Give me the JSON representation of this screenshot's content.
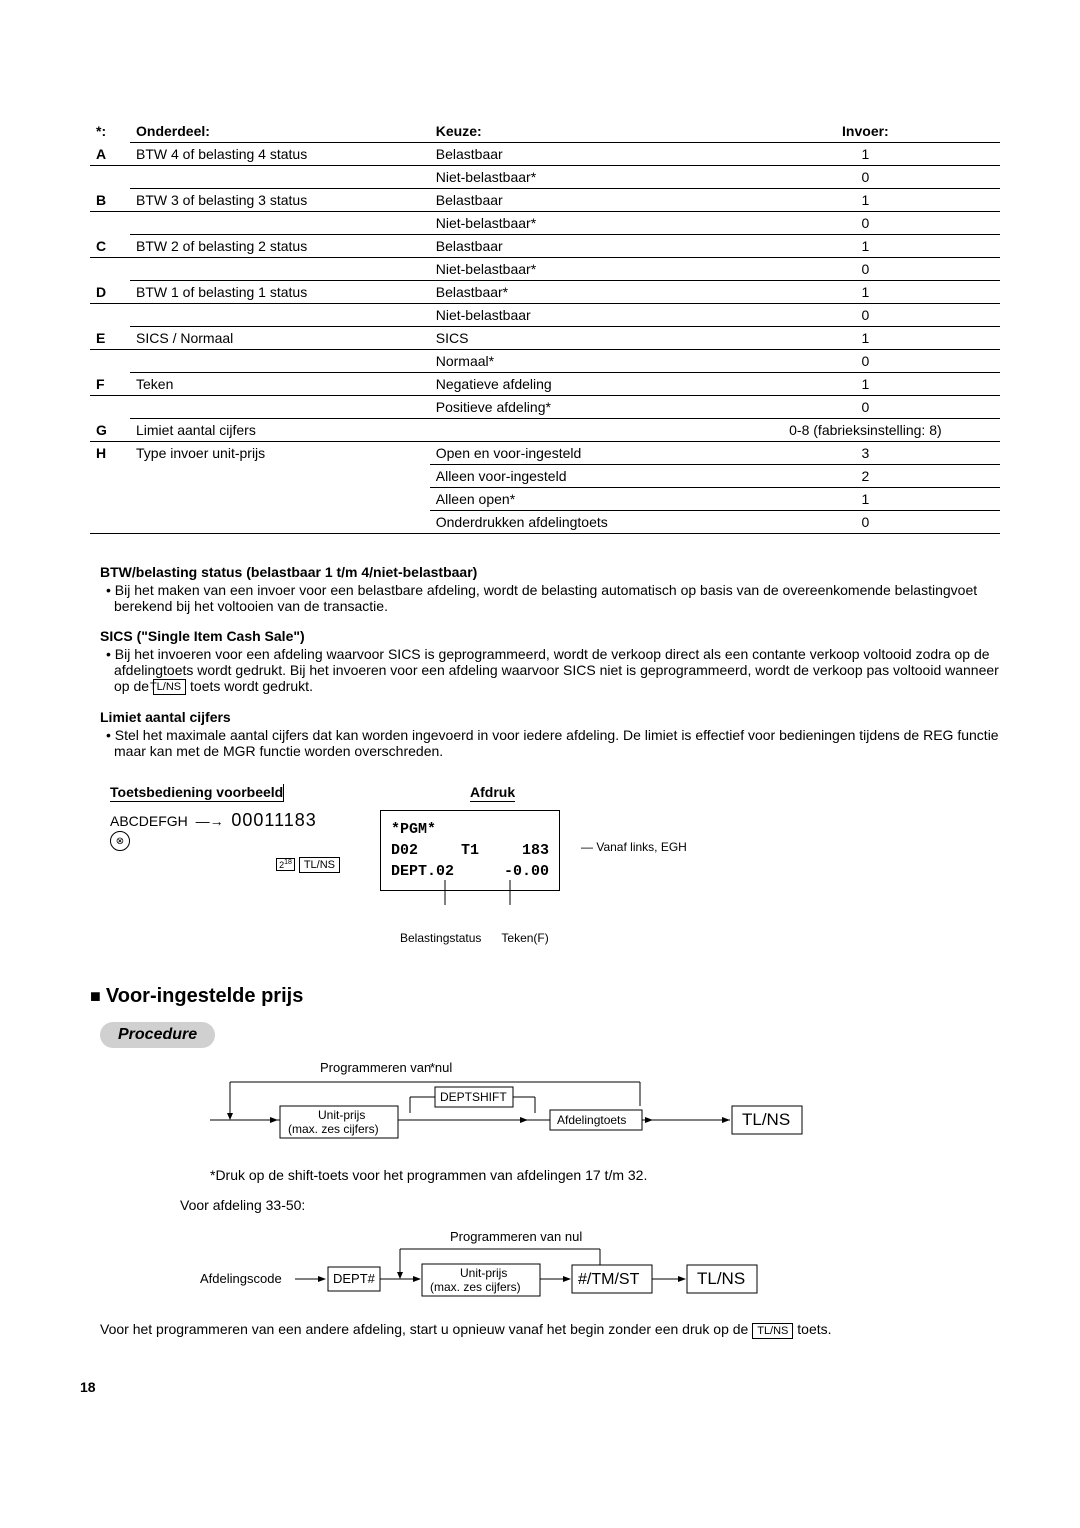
{
  "table": {
    "headers": {
      "h1": "Onderdeel:",
      "h2": "Keuze:",
      "h3": "Invoer:"
    },
    "star": "*:",
    "rows": [
      {
        "letter": "A",
        "onderdeel": "BTW 4 of belasting 4 status",
        "k1": "Belastbaar",
        "v1": "1",
        "k2": "Niet-belastbaar*",
        "v2": "0"
      },
      {
        "letter": "B",
        "onderdeel": "BTW 3 of belasting 3 status",
        "k1": "Belastbaar",
        "v1": "1",
        "k2": "Niet-belastbaar*",
        "v2": "0"
      },
      {
        "letter": "C",
        "onderdeel": "BTW 2 of belasting 2 status",
        "k1": "Belastbaar",
        "v1": "1",
        "k2": "Niet-belastbaar*",
        "v2": "0"
      },
      {
        "letter": "D",
        "onderdeel": "BTW 1 of belasting 1 status",
        "k1": "Belastbaar*",
        "v1": "1",
        "k2": "Niet-belastbaar",
        "v2": "0"
      },
      {
        "letter": "E",
        "onderdeel": "SICS / Normaal",
        "k1": "SICS",
        "v1": "1",
        "k2": "Normaal*",
        "v2": "0"
      },
      {
        "letter": "F",
        "onderdeel": "Teken",
        "k1": "Negatieve afdeling",
        "v1": "1",
        "k2": "Positieve afdeling*",
        "v2": "0"
      }
    ],
    "g": {
      "letter": "G",
      "onderdeel": "Limiet aantal cijfers",
      "invoer": "0-8 (fabrieksinstelling: 8)"
    },
    "h": {
      "letter": "H",
      "onderdeel": "Type invoer unit-prijs",
      "opts": [
        {
          "k": "Open en voor-ingesteld",
          "v": "3"
        },
        {
          "k": "Alleen voor-ingesteld",
          "v": "2"
        },
        {
          "k": "Alleen open*",
          "v": "1"
        },
        {
          "k": "Onderdrukken afdelingtoets",
          "v": "0"
        }
      ]
    }
  },
  "notes": {
    "n1": {
      "title": "BTW/belasting status (belastbaar 1 t/m 4/niet-belastbaar)",
      "body": "Bij het maken van een invoer voor een belastbare afdeling, wordt de belasting automatisch op basis van de overeenkomende belastingvoet berekend bij het voltooien van de transactie."
    },
    "n2": {
      "title": "SICS (\"Single Item Cash Sale\")",
      "body_a": "Bij het invoeren voor een afdeling waarvoor SICS is geprogrammeerd, wordt de verkoop direct als een contante verkoop voltooid zodra op de afdelingtoets wordt gedrukt. Bij het invoeren voor een afdeling waarvoor SICS niet is geprogrammeerd, wordt de verkoop pas voltooid wanneer op de ",
      "key": "TL/NS",
      "body_b": " toets wordt gedrukt."
    },
    "n3": {
      "title": "Limiet aantal cijfers",
      "body": "Stel het maximale aantal cijfers dat kan worden ingevoerd in voor iedere afdeling. De limiet is effectief voor bedieningen tijdens de REG functie maar kan met de MGR functie worden overschreden."
    }
  },
  "example": {
    "head1": "Toetsbediening voorbeeld",
    "head2": "Afdruk",
    "letters": "ABCDEFGH",
    "num": "00011183",
    "key_small": "2",
    "key_sup": "18",
    "key_tlns": "TL/NS",
    "circle": "⊗",
    "receipt": {
      "l1a": "*PGM*",
      "l2a": "D02",
      "l2b": "T1",
      "l2c": "183",
      "l3a": "DEPT.02",
      "l3b": "-0.00"
    },
    "annot_right": "Vanaf links, EGH",
    "annot_b1": "Belastingstatus",
    "annot_b2": "Teken(F)"
  },
  "section2": {
    "title": "Voor-ingestelde prijs",
    "procedure": "Procedure",
    "fl1": {
      "prog": "Programmeren van nul",
      "star": "*",
      "deptshift": "DEPTSHIFT",
      "unit": "Unit-prijs",
      "max": "(max. zes cijfers)",
      "afd": "Afdelingtoets",
      "tlns": "TL/NS"
    },
    "note1": "*Druk op de shift-toets voor het programmen van afdelingen 17 t/m 32.",
    "voor": "Voor afdeling 33-50:",
    "fl2": {
      "prog": "Programmeren van nul",
      "afdcode": "Afdelingscode",
      "dept": "DEPT#",
      "unit": "Unit-prijs",
      "max": "(max. zes cijfers)",
      "tmst": "#/TM/ST",
      "tlns": "TL/NS"
    },
    "final_a": "Voor het programmeren van een andere afdeling, start u opnieuw vanaf het begin zonder een druk op de ",
    "final_key": "TL/NS",
    "final_b": " toets."
  },
  "pagenum": "18"
}
